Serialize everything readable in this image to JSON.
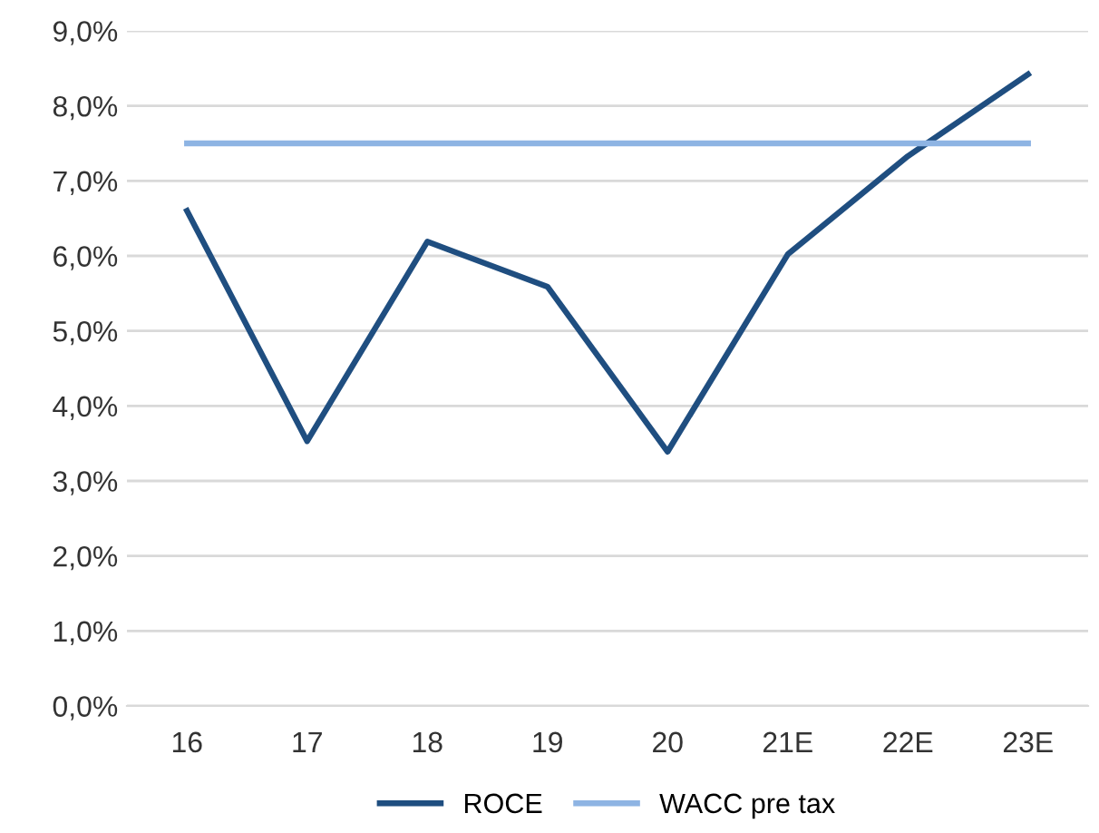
{
  "chart_data": {
    "type": "line",
    "categories": [
      "16",
      "17",
      "18",
      "19",
      "20",
      "21E",
      "22E",
      "23E"
    ],
    "series": [
      {
        "name": "ROCE",
        "color": "#1f4e80",
        "values": [
          6.6,
          3.53,
          6.19,
          5.59,
          3.39,
          6.02,
          7.33,
          8.42
        ]
      },
      {
        "name": "WACC pre tax",
        "color": "#8eb4e3",
        "values": [
          7.5,
          7.5,
          7.5,
          7.5,
          7.5,
          7.5,
          7.5,
          7.5
        ]
      }
    ],
    "ylim": [
      0,
      9
    ],
    "yticks": [
      {
        "value": 0,
        "label": "0,0%"
      },
      {
        "value": 1,
        "label": "1,0%"
      },
      {
        "value": 2,
        "label": "2,0%"
      },
      {
        "value": 3,
        "label": "3,0%"
      },
      {
        "value": 4,
        "label": "4,0%"
      },
      {
        "value": 5,
        "label": "5,0%"
      },
      {
        "value": 6,
        "label": "6,0%"
      },
      {
        "value": 7,
        "label": "7,0%"
      },
      {
        "value": 8,
        "label": "8,0%"
      },
      {
        "value": 9,
        "label": "9,0%"
      }
    ],
    "grid": "y",
    "legend": "bottom",
    "marker": "none",
    "line_style": "solid"
  }
}
